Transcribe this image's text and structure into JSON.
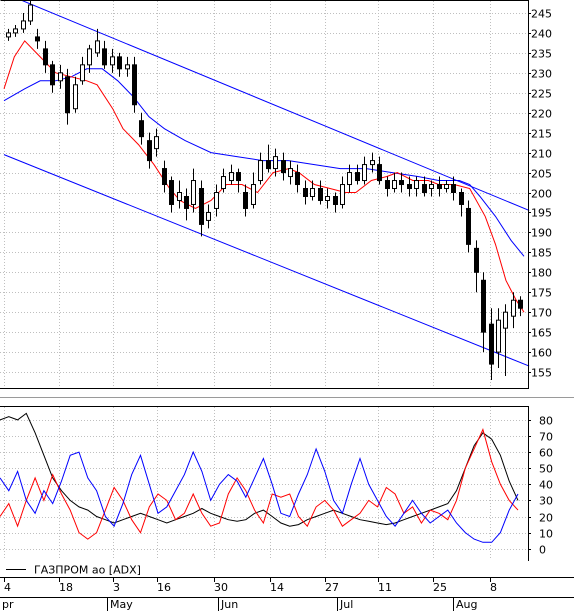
{
  "chart_data": [
    {
      "type": "candlestick",
      "title": "",
      "x_tick_days": [
        "4",
        "18",
        "3",
        "16",
        "30",
        "14",
        "27",
        "11",
        "25",
        "8"
      ],
      "x_month_labels": [
        "pr",
        "May",
        "Jun",
        "Jul",
        "Aug"
      ],
      "y_ticks": [
        155,
        160,
        165,
        170,
        175,
        180,
        185,
        190,
        195,
        200,
        205,
        210,
        215,
        220,
        225,
        230,
        235,
        240,
        245
      ],
      "ylim": [
        151,
        248
      ],
      "grid": true,
      "colors": {
        "candle": "#000000",
        "up_body": "#ffffff",
        "ma_fast": "#ff0000",
        "ma_slow": "#0000ff",
        "channel": "#0000ff"
      },
      "ma_fast_points": [
        [
          0,
          226
        ],
        [
          4,
          234
        ],
        [
          8,
          238
        ],
        [
          14,
          234
        ],
        [
          20,
          230
        ],
        [
          26,
          229
        ],
        [
          32,
          228
        ],
        [
          36,
          227
        ],
        [
          42,
          221
        ],
        [
          46,
          216
        ],
        [
          52,
          212
        ],
        [
          58,
          207
        ],
        [
          64,
          201
        ],
        [
          68,
          198
        ],
        [
          74,
          196
        ],
        [
          80,
          198
        ],
        [
          86,
          202
        ],
        [
          92,
          202
        ],
        [
          98,
          200
        ],
        [
          104,
          205
        ],
        [
          110,
          206
        ],
        [
          114,
          205
        ],
        [
          120,
          202
        ],
        [
          126,
          201
        ],
        [
          132,
          200
        ],
        [
          136,
          200
        ],
        [
          142,
          203
        ],
        [
          148,
          204
        ],
        [
          152,
          205
        ],
        [
          158,
          203
        ],
        [
          164,
          203
        ],
        [
          168,
          202
        ],
        [
          174,
          202
        ],
        [
          180,
          201
        ],
        [
          186,
          194
        ],
        [
          190,
          187
        ],
        [
          194,
          178
        ],
        [
          198,
          173
        ],
        [
          201,
          170
        ]
      ],
      "ma_slow_points": [
        [
          0,
          223
        ],
        [
          8,
          226
        ],
        [
          14,
          228
        ],
        [
          20,
          228
        ],
        [
          26,
          229
        ],
        [
          32,
          231
        ],
        [
          38,
          231
        ],
        [
          44,
          228
        ],
        [
          50,
          224
        ],
        [
          56,
          219
        ],
        [
          62,
          216
        ],
        [
          70,
          213
        ],
        [
          80,
          210
        ],
        [
          90,
          209
        ],
        [
          100,
          208
        ],
        [
          110,
          208
        ],
        [
          120,
          207
        ],
        [
          130,
          206
        ],
        [
          140,
          206
        ],
        [
          150,
          205
        ],
        [
          160,
          204
        ],
        [
          168,
          203
        ],
        [
          176,
          203
        ],
        [
          180,
          202
        ],
        [
          184,
          199
        ],
        [
          190,
          194
        ],
        [
          196,
          188
        ],
        [
          201,
          184
        ]
      ],
      "channel_upper": [
        [
          0,
          250
        ],
        [
          203,
          195.5
        ]
      ],
      "channel_lower": [
        [
          0,
          209.5
        ],
        [
          203,
          156.5
        ]
      ],
      "candles": [
        [
          239,
          240,
          241,
          238
        ],
        [
          240,
          241,
          242,
          239
        ],
        [
          241,
          243,
          245,
          240
        ],
        [
          243,
          247,
          248,
          242
        ],
        [
          239,
          238,
          241,
          236
        ],
        [
          236,
          232,
          238,
          230
        ],
        [
          232,
          227,
          233,
          225
        ],
        [
          228,
          230,
          232,
          226
        ],
        [
          229,
          220,
          231,
          217
        ],
        [
          221,
          227,
          229,
          220
        ],
        [
          228,
          232,
          234,
          227
        ],
        [
          232,
          236,
          237,
          230
        ],
        [
          235,
          238,
          241,
          234
        ],
        [
          236,
          232,
          238,
          231
        ],
        [
          232,
          234,
          236,
          230
        ],
        [
          234,
          231,
          235,
          229
        ],
        [
          231,
          232,
          234,
          229
        ],
        [
          232,
          222,
          234,
          220
        ],
        [
          218,
          214,
          220,
          212
        ],
        [
          213,
          208,
          215,
          206
        ],
        [
          211,
          214,
          216,
          209
        ],
        [
          206,
          202,
          208,
          200
        ],
        [
          203,
          197,
          204,
          195
        ],
        [
          198,
          200,
          203,
          196
        ],
        [
          199,
          196,
          201,
          193
        ],
        [
          197,
          203,
          206,
          195
        ],
        [
          201,
          192,
          203,
          189
        ],
        [
          193,
          195,
          197,
          191
        ],
        [
          196,
          200,
          202,
          194
        ],
        [
          201,
          204,
          206,
          200
        ],
        [
          203,
          205,
          207,
          202
        ],
        [
          205,
          203,
          206,
          200
        ],
        [
          200,
          196,
          202,
          194
        ],
        [
          197,
          202,
          205,
          196
        ],
        [
          203,
          208,
          210,
          202
        ],
        [
          208,
          206,
          212,
          205
        ],
        [
          206,
          209,
          211,
          204
        ],
        [
          208,
          205,
          210,
          203
        ],
        [
          204,
          206,
          208,
          202
        ],
        [
          205,
          202,
          207,
          200
        ],
        [
          201,
          199,
          203,
          197
        ],
        [
          199,
          201,
          203,
          198
        ],
        [
          201,
          198,
          203,
          197
        ],
        [
          198,
          199,
          201,
          196
        ],
        [
          199,
          197,
          200,
          195
        ],
        [
          197,
          202,
          204,
          196
        ],
        [
          202,
          205,
          207,
          200
        ],
        [
          205,
          203,
          207,
          202
        ],
        [
          203,
          207,
          209,
          202
        ],
        [
          207,
          208,
          210,
          205
        ],
        [
          207,
          203,
          209,
          202
        ],
        [
          203,
          201,
          204,
          199
        ],
        [
          201,
          203,
          205,
          200
        ],
        [
          203,
          202,
          205,
          200
        ],
        [
          202,
          201,
          204,
          199
        ],
        [
          201,
          203,
          204,
          199
        ],
        [
          202,
          200,
          204,
          199
        ],
        [
          201,
          202,
          203,
          199
        ],
        [
          202,
          201,
          204,
          199
        ],
        [
          201,
          202,
          203,
          200
        ],
        [
          202,
          200,
          204,
          198
        ],
        [
          200,
          197,
          201,
          194
        ],
        [
          196,
          187,
          198,
          185
        ],
        [
          186,
          180,
          188,
          175
        ],
        [
          178,
          165,
          180,
          160
        ],
        [
          167,
          157,
          171,
          153
        ],
        [
          160,
          168,
          171,
          156
        ],
        [
          166,
          170,
          172,
          154
        ],
        [
          169,
          173,
          175,
          166
        ],
        [
          173,
          171,
          174,
          169
        ]
      ]
    },
    {
      "type": "line",
      "title": "",
      "legend": "ГАЗПРОМ ао [ADX]",
      "y_ticks": [
        0,
        10,
        20,
        30,
        40,
        50,
        60,
        70,
        80
      ],
      "ylim": [
        -7,
        88
      ],
      "grid": true,
      "series_colors": [
        "#000000",
        "#ff0000",
        "#0000ff"
      ],
      "series": [
        {
          "values": [
            80,
            82,
            80,
            84,
            72,
            58,
            44,
            36,
            30,
            26,
            24,
            20,
            18,
            16,
            18,
            20,
            22,
            20,
            18,
            16,
            18,
            20,
            22,
            25,
            22,
            20,
            18,
            17,
            18,
            22,
            24,
            20,
            16,
            14,
            15,
            18,
            20,
            22,
            24,
            22,
            20,
            18,
            17,
            16,
            15,
            16,
            18,
            20,
            22,
            24,
            26,
            28,
            36,
            50,
            64,
            72,
            68,
            58,
            42,
            30
          ]
        },
        {
          "values": [
            20,
            28,
            14,
            30,
            44,
            30,
            46,
            34,
            24,
            10,
            6,
            10,
            24,
            38,
            30,
            18,
            10,
            26,
            34,
            30,
            18,
            22,
            34,
            22,
            14,
            16,
            34,
            44,
            36,
            24,
            16,
            34,
            32,
            34,
            20,
            14,
            26,
            30,
            24,
            14,
            18,
            22,
            30,
            26,
            38,
            34,
            22,
            26,
            16,
            24,
            22,
            18,
            30,
            50,
            62,
            74,
            54,
            40,
            30,
            24
          ]
        },
        {
          "values": [
            44,
            36,
            48,
            30,
            22,
            36,
            28,
            42,
            58,
            60,
            44,
            36,
            20,
            14,
            28,
            46,
            58,
            40,
            22,
            26,
            36,
            46,
            60,
            48,
            30,
            40,
            46,
            42,
            32,
            44,
            56,
            40,
            22,
            20,
            34,
            46,
            62,
            48,
            30,
            22,
            40,
            56,
            40,
            30,
            20,
            14,
            22,
            30,
            22,
            16,
            20,
            24,
            16,
            10,
            6,
            4,
            4,
            10,
            24,
            34
          ]
        }
      ]
    }
  ]
}
